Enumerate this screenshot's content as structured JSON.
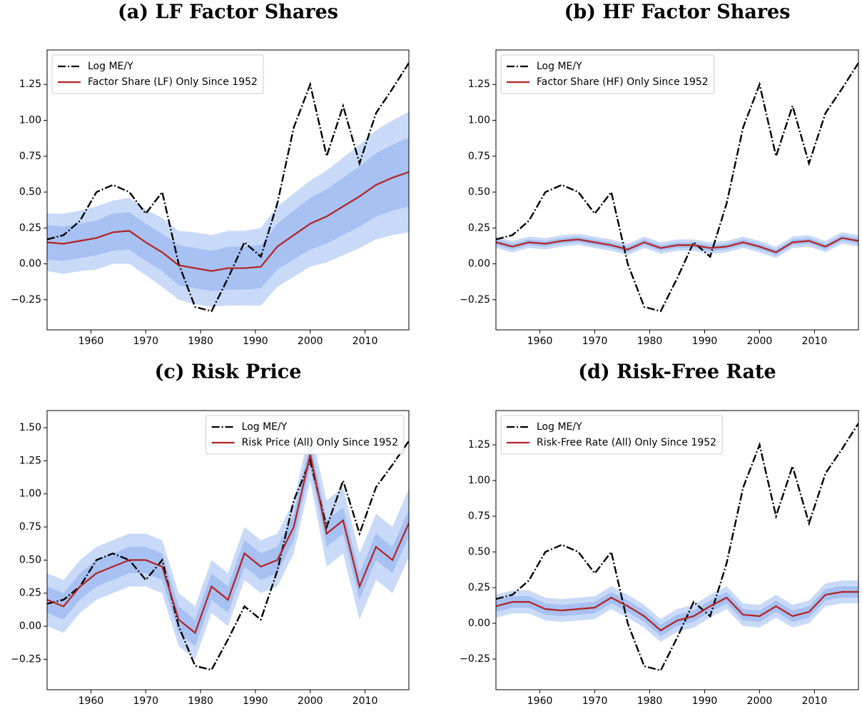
{
  "chart_data": [
    {
      "type": "line",
      "title": "(a) LF Factor Shares",
      "legend": "upper left",
      "grid": false,
      "xlim": [
        1952,
        2018
      ],
      "ylim": [
        -0.46,
        1.49
      ],
      "xticks": [
        1960,
        1970,
        1980,
        1990,
        2000,
        2010
      ],
      "yticks": [
        {
          "value": -0.25,
          "label": "−0.25"
        },
        {
          "value": 0,
          "label": "0.00"
        },
        {
          "value": 0.25,
          "label": "0.25"
        },
        {
          "value": 0.5,
          "label": "0.50"
        },
        {
          "value": 0.75,
          "label": "0.75"
        },
        {
          "value": 1,
          "label": "1.00"
        },
        {
          "value": 1.25,
          "label": "1.25"
        }
      ],
      "x": [
        1952,
        1955,
        1958,
        1961,
        1964,
        1967,
        1970,
        1973,
        1976,
        1979,
        1982,
        1985,
        1988,
        1991,
        1994,
        1997,
        2000,
        2003,
        2006,
        2009,
        2012,
        2015,
        2018
      ],
      "bands": [
        {
          "color": "#c9daf8",
          "lower": [
            -0.05,
            -0.07,
            -0.05,
            -0.04,
            0.0,
            0.0,
            -0.08,
            -0.16,
            -0.25,
            -0.28,
            -0.3,
            -0.29,
            -0.29,
            -0.29,
            -0.16,
            -0.09,
            -0.02,
            0.01,
            0.06,
            0.11,
            0.17,
            0.2,
            0.22
          ],
          "upper": [
            0.35,
            0.35,
            0.37,
            0.4,
            0.44,
            0.46,
            0.38,
            0.32,
            0.23,
            0.22,
            0.2,
            0.23,
            0.23,
            0.25,
            0.4,
            0.49,
            0.58,
            0.65,
            0.74,
            0.83,
            0.93,
            1.0,
            1.06
          ]
        },
        {
          "color": "#a7c1f2",
          "lower": [
            0.03,
            0.02,
            0.04,
            0.06,
            0.09,
            0.1,
            0.02,
            -0.05,
            -0.15,
            -0.17,
            -0.19,
            -0.18,
            -0.18,
            -0.17,
            -0.04,
            0.03,
            0.1,
            0.14,
            0.2,
            0.26,
            0.33,
            0.37,
            0.4
          ],
          "upper": [
            0.27,
            0.26,
            0.28,
            0.3,
            0.35,
            0.36,
            0.28,
            0.21,
            0.13,
            0.11,
            0.09,
            0.12,
            0.12,
            0.13,
            0.28,
            0.37,
            0.46,
            0.52,
            0.6,
            0.68,
            0.77,
            0.83,
            0.88
          ]
        }
      ],
      "series": [
        {
          "name": "Log ME/Y",
          "color": "#000000",
          "style": "dashdot",
          "values": [
            0.17,
            0.2,
            0.3,
            0.5,
            0.55,
            0.5,
            0.35,
            0.5,
            0.0,
            -0.3,
            -0.33,
            -0.1,
            0.15,
            0.05,
            0.42,
            0.95,
            1.25,
            0.75,
            1.1,
            0.7,
            1.05,
            1.22,
            1.4
          ]
        },
        {
          "name": "Factor Share (LF) Only Since 1952",
          "color": "#b22222",
          "style": "solid",
          "values": [
            0.15,
            0.14,
            0.16,
            0.18,
            0.22,
            0.23,
            0.15,
            0.08,
            -0.01,
            -0.03,
            -0.05,
            -0.03,
            -0.03,
            -0.02,
            0.12,
            0.2,
            0.28,
            0.33,
            0.4,
            0.47,
            0.55,
            0.6,
            0.64
          ]
        }
      ]
    },
    {
      "type": "line",
      "title": "(b) HF Factor Shares",
      "legend": "upper left",
      "grid": false,
      "xlim": [
        1952,
        2018
      ],
      "ylim": [
        -0.46,
        1.49
      ],
      "xticks": [
        1960,
        1970,
        1980,
        1990,
        2000,
        2010
      ],
      "yticks": [
        {
          "value": -0.25,
          "label": "−0.25"
        },
        {
          "value": 0,
          "label": "0.00"
        },
        {
          "value": 0.25,
          "label": "0.25"
        },
        {
          "value": 0.5,
          "label": "0.50"
        },
        {
          "value": 0.75,
          "label": "0.75"
        },
        {
          "value": 1,
          "label": "1.00"
        },
        {
          "value": 1.25,
          "label": "1.25"
        }
      ],
      "x": [
        1952,
        1955,
        1958,
        1961,
        1964,
        1967,
        1970,
        1973,
        1976,
        1979,
        1982,
        1985,
        1988,
        1991,
        1994,
        1997,
        2000,
        2003,
        2006,
        2009,
        2012,
        2015,
        2018
      ],
      "bands": [
        {
          "color": "#c9daf8",
          "lower": [
            0.11,
            0.08,
            0.11,
            0.1,
            0.12,
            0.13,
            0.11,
            0.09,
            0.06,
            0.11,
            0.07,
            0.09,
            0.09,
            0.07,
            0.08,
            0.11,
            0.08,
            0.04,
            0.11,
            0.12,
            0.08,
            0.14,
            0.12
          ],
          "upper": [
            0.19,
            0.16,
            0.19,
            0.18,
            0.2,
            0.21,
            0.19,
            0.17,
            0.14,
            0.19,
            0.15,
            0.17,
            0.17,
            0.15,
            0.16,
            0.19,
            0.16,
            0.12,
            0.19,
            0.2,
            0.16,
            0.22,
            0.2
          ]
        },
        {
          "color": "#a7c1f2",
          "lower": [
            0.13,
            0.1,
            0.13,
            0.12,
            0.14,
            0.15,
            0.13,
            0.11,
            0.08,
            0.13,
            0.09,
            0.11,
            0.11,
            0.09,
            0.1,
            0.13,
            0.1,
            0.06,
            0.13,
            0.14,
            0.1,
            0.16,
            0.14
          ],
          "upper": [
            0.17,
            0.14,
            0.17,
            0.16,
            0.18,
            0.19,
            0.17,
            0.15,
            0.12,
            0.17,
            0.13,
            0.15,
            0.15,
            0.13,
            0.14,
            0.17,
            0.14,
            0.1,
            0.17,
            0.18,
            0.14,
            0.2,
            0.18
          ]
        }
      ],
      "series": [
        {
          "name": "Log ME/Y",
          "color": "#000000",
          "style": "dashdot",
          "values": [
            0.17,
            0.2,
            0.3,
            0.5,
            0.55,
            0.5,
            0.35,
            0.5,
            0.0,
            -0.3,
            -0.33,
            -0.1,
            0.15,
            0.05,
            0.42,
            0.95,
            1.25,
            0.75,
            1.1,
            0.7,
            1.05,
            1.22,
            1.4
          ]
        },
        {
          "name": "Factor Share (HF) Only Since 1952",
          "color": "#b22222",
          "style": "solid",
          "values": [
            0.15,
            0.12,
            0.15,
            0.14,
            0.16,
            0.17,
            0.15,
            0.13,
            0.1,
            0.15,
            0.11,
            0.13,
            0.13,
            0.11,
            0.12,
            0.15,
            0.12,
            0.08,
            0.15,
            0.16,
            0.12,
            0.18,
            0.16
          ]
        }
      ]
    },
    {
      "type": "line",
      "title": "(c) Risk Price",
      "legend": "upper right",
      "grid": false,
      "xlim": [
        1952,
        2018
      ],
      "ylim": [
        -0.48,
        1.63
      ],
      "xticks": [
        1960,
        1970,
        1980,
        1990,
        2000,
        2010
      ],
      "yticks": [
        {
          "value": -0.25,
          "label": "−0.25"
        },
        {
          "value": 0,
          "label": "0.00"
        },
        {
          "value": 0.25,
          "label": "0.25"
        },
        {
          "value": 0.5,
          "label": "0.50"
        },
        {
          "value": 0.75,
          "label": "0.75"
        },
        {
          "value": 1,
          "label": "1.00"
        },
        {
          "value": 1.25,
          "label": "1.25"
        },
        {
          "value": 1.5,
          "label": "1.50"
        }
      ],
      "x": [
        1952,
        1955,
        1958,
        1961,
        1964,
        1967,
        1970,
        1973,
        1976,
        1979,
        1982,
        1985,
        1988,
        1991,
        1994,
        1997,
        2000,
        2003,
        2006,
        2009,
        2012,
        2015,
        2018
      ],
      "bands": [
        {
          "color": "#c9daf8",
          "lower": [
            0.0,
            -0.05,
            0.1,
            0.2,
            0.25,
            0.3,
            0.3,
            0.25,
            -0.15,
            -0.25,
            0.1,
            0.0,
            0.35,
            0.25,
            0.3,
            0.55,
            1.1,
            0.45,
            0.55,
            0.05,
            0.35,
            0.25,
            0.52
          ],
          "upper": [
            0.4,
            0.35,
            0.5,
            0.6,
            0.65,
            0.7,
            0.7,
            0.65,
            0.25,
            0.15,
            0.5,
            0.4,
            0.75,
            0.65,
            0.7,
            0.95,
            1.5,
            0.95,
            1.05,
            0.55,
            0.85,
            0.75,
            1.04
          ]
        },
        {
          "color": "#a7c1f2",
          "lower": [
            0.1,
            0.05,
            0.2,
            0.3,
            0.35,
            0.4,
            0.4,
            0.35,
            -0.05,
            -0.15,
            0.2,
            0.1,
            0.45,
            0.35,
            0.4,
            0.65,
            1.2,
            0.6,
            0.7,
            0.2,
            0.5,
            0.4,
            0.68
          ],
          "upper": [
            0.3,
            0.25,
            0.4,
            0.5,
            0.55,
            0.6,
            0.6,
            0.55,
            0.15,
            0.05,
            0.4,
            0.3,
            0.65,
            0.55,
            0.6,
            0.85,
            1.4,
            0.8,
            0.9,
            0.4,
            0.7,
            0.6,
            0.88
          ]
        }
      ],
      "series": [
        {
          "name": "Log ME/Y",
          "color": "#000000",
          "style": "dashdot",
          "values": [
            0.17,
            0.2,
            0.3,
            0.5,
            0.55,
            0.5,
            0.35,
            0.5,
            0.0,
            -0.3,
            -0.33,
            -0.1,
            0.15,
            0.05,
            0.42,
            0.95,
            1.25,
            0.75,
            1.1,
            0.7,
            1.05,
            1.22,
            1.4
          ]
        },
        {
          "name": "Risk Price (All) Only Since 1952",
          "color": "#b22222",
          "style": "solid",
          "values": [
            0.2,
            0.15,
            0.3,
            0.4,
            0.45,
            0.5,
            0.5,
            0.45,
            0.05,
            -0.05,
            0.3,
            0.2,
            0.55,
            0.45,
            0.5,
            0.75,
            1.3,
            0.7,
            0.8,
            0.3,
            0.6,
            0.5,
            0.78
          ]
        }
      ]
    },
    {
      "type": "line",
      "title": "(d) Risk-Free Rate",
      "legend": "upper left",
      "grid": false,
      "xlim": [
        1952,
        2018
      ],
      "ylim": [
        -0.465,
        1.49
      ],
      "xticks": [
        1960,
        1970,
        1980,
        1990,
        2000,
        2010
      ],
      "yticks": [
        {
          "value": -0.25,
          "label": "−0.25"
        },
        {
          "value": 0,
          "label": "0.00"
        },
        {
          "value": 0.25,
          "label": "0.25"
        },
        {
          "value": 0.5,
          "label": "0.50"
        },
        {
          "value": 0.75,
          "label": "0.75"
        },
        {
          "value": 1,
          "label": "1.00"
        },
        {
          "value": 1.25,
          "label": "1.25"
        }
      ],
      "x": [
        1952,
        1955,
        1958,
        1961,
        1964,
        1967,
        1970,
        1973,
        1976,
        1979,
        1982,
        1985,
        1988,
        1991,
        1994,
        1997,
        2000,
        2003,
        2006,
        2009,
        2012,
        2015,
        2018
      ],
      "bands": [
        {
          "color": "#c9daf8",
          "lower": [
            0.04,
            0.07,
            0.07,
            0.02,
            0.01,
            0.02,
            0.03,
            0.1,
            0.04,
            -0.03,
            -0.13,
            -0.06,
            -0.03,
            0.04,
            0.1,
            -0.02,
            -0.03,
            0.04,
            -0.03,
            0.0,
            0.12,
            0.14,
            0.14
          ],
          "upper": [
            0.2,
            0.23,
            0.23,
            0.18,
            0.17,
            0.18,
            0.19,
            0.26,
            0.2,
            0.13,
            0.03,
            0.1,
            0.13,
            0.2,
            0.26,
            0.14,
            0.13,
            0.2,
            0.13,
            0.16,
            0.28,
            0.3,
            0.3
          ]
        },
        {
          "color": "#a7c1f2",
          "lower": [
            0.08,
            0.11,
            0.11,
            0.06,
            0.05,
            0.06,
            0.07,
            0.14,
            0.08,
            0.01,
            -0.09,
            -0.02,
            0.01,
            0.08,
            0.14,
            0.02,
            0.01,
            0.08,
            0.01,
            0.04,
            0.16,
            0.18,
            0.18
          ],
          "upper": [
            0.16,
            0.19,
            0.19,
            0.14,
            0.13,
            0.14,
            0.15,
            0.22,
            0.16,
            0.09,
            -0.01,
            0.06,
            0.09,
            0.16,
            0.22,
            0.1,
            0.09,
            0.16,
            0.09,
            0.12,
            0.24,
            0.26,
            0.26
          ]
        }
      ],
      "series": [
        {
          "name": "Log ME/Y",
          "color": "#000000",
          "style": "dashdot",
          "values": [
            0.17,
            0.2,
            0.3,
            0.5,
            0.55,
            0.5,
            0.35,
            0.5,
            0.0,
            -0.3,
            -0.33,
            -0.1,
            0.15,
            0.05,
            0.42,
            0.95,
            1.25,
            0.75,
            1.1,
            0.7,
            1.05,
            1.22,
            1.4
          ]
        },
        {
          "name": "Risk-Free Rate (All) Only Since 1952",
          "color": "#b22222",
          "style": "solid",
          "values": [
            0.12,
            0.15,
            0.15,
            0.1,
            0.09,
            0.1,
            0.11,
            0.18,
            0.12,
            0.05,
            -0.05,
            0.02,
            0.05,
            0.12,
            0.18,
            0.06,
            0.05,
            0.12,
            0.05,
            0.08,
            0.2,
            0.22,
            0.22
          ]
        }
      ]
    }
  ]
}
